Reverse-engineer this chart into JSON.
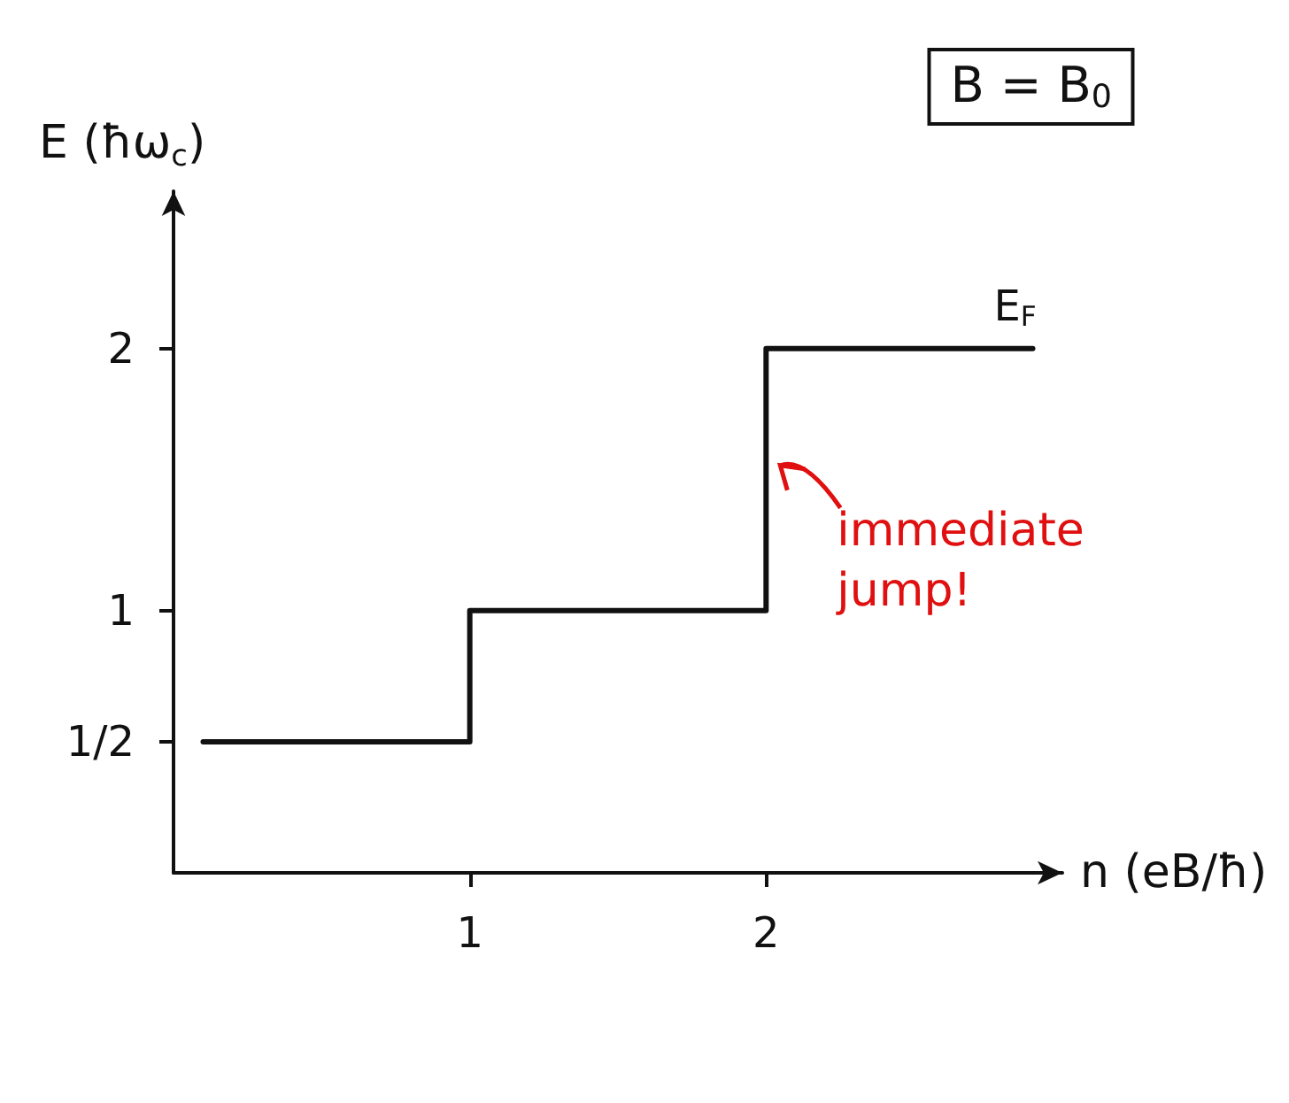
{
  "chart_data": {
    "type": "step",
    "title": "B = B$_{0}$",
    "xlabel": "n (eB/ħ)",
    "ylabel": "E (ħω$_{c}$)",
    "x": [
      0.1,
      1,
      2,
      2.9
    ],
    "series": [
      {
        "name": "E$_{F}$",
        "color": "#111111",
        "values": [
          0.5,
          1,
          2,
          2
        ]
      }
    ],
    "xlim": [
      0,
      3
    ],
    "ylim": [
      0,
      2.6
    ],
    "xticks": [
      1,
      2
    ],
    "yticks": [
      {
        "value": 0.5,
        "label": "1/2"
      },
      1,
      2
    ],
    "annotations": [
      {
        "text": "immediate jump!",
        "x": 2,
        "y": 1.5
      }
    ],
    "grid": false,
    "legend": false,
    "marker": "none",
    "line_style": "solid"
  }
}
